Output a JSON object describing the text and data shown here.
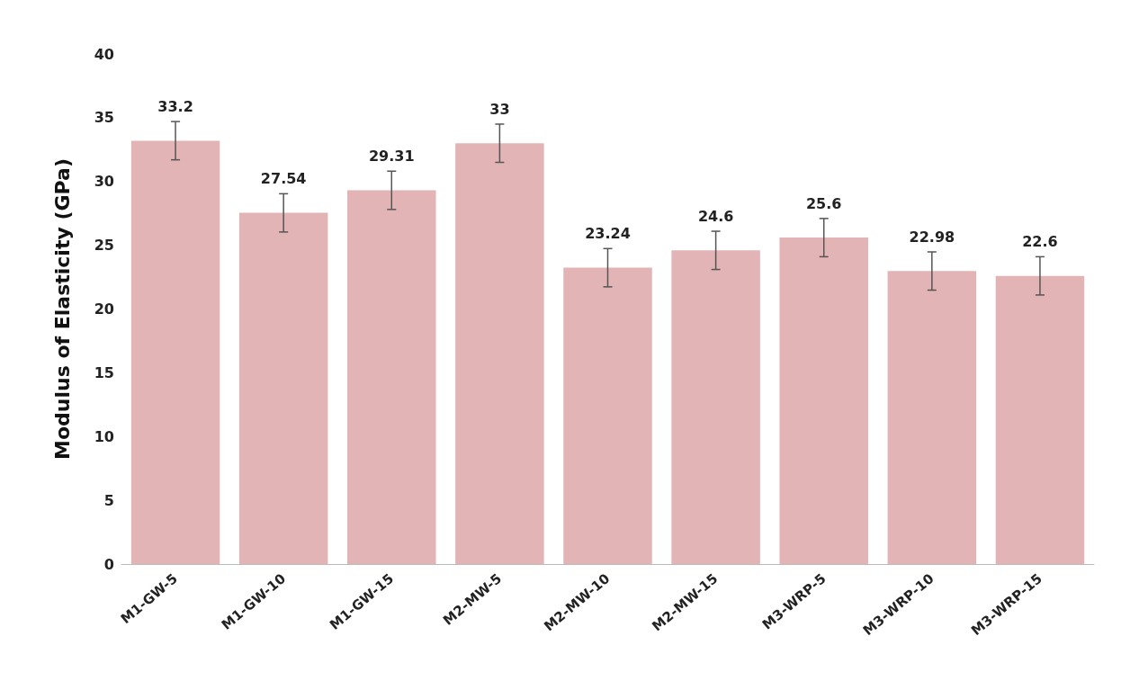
{
  "chart_data": {
    "type": "bar",
    "ylabel": "Modulus of Elasticity (GPa)",
    "categories": [
      "M1-GW-5",
      "M1-GW-10",
      "M1-GW-15",
      "M2-MW-5",
      "M2-MW-10",
      "M2-MW-15",
      "M3-WRP-5",
      "M3-WRP-10",
      "M3-WRP-15"
    ],
    "values": [
      33.2,
      27.54,
      29.31,
      33,
      23.24,
      24.6,
      25.6,
      22.98,
      22.6
    ],
    "errors": [
      1.5,
      1.5,
      1.5,
      1.5,
      1.5,
      1.5,
      1.5,
      1.5,
      1.5
    ],
    "color": "#e3b4b6",
    "data_labels": true,
    "ylim": [
      0,
      40
    ],
    "yticks": [
      0,
      5,
      10,
      15,
      20,
      25,
      30,
      35,
      40
    ]
  }
}
